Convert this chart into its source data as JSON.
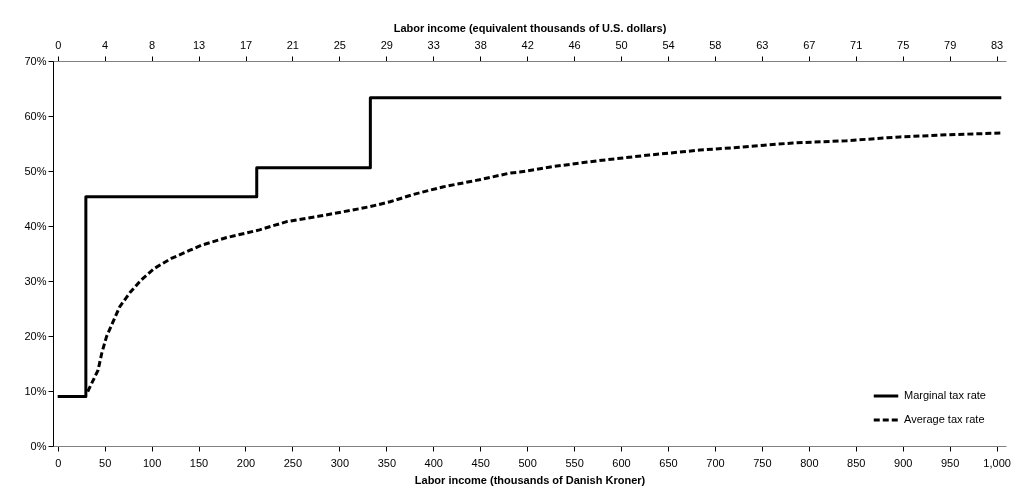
{
  "chart_data": {
    "type": "line",
    "xlabel": "Labor income (thousands of Danish Kroner)",
    "x2label": "Labor income (equivalent thousands of U.S. dollars)",
    "xlim": [
      -5,
      1010
    ],
    "xticks": [
      0,
      50,
      100,
      150,
      200,
      250,
      300,
      350,
      400,
      450,
      500,
      550,
      600,
      650,
      700,
      750,
      800,
      850,
      900,
      950,
      {
        "value": 1000,
        "label": "1,000"
      }
    ],
    "x2lim": [
      -0.4167,
      84.17
    ],
    "x2ticks": [
      0,
      {
        "value": 4.167,
        "label": "4"
      },
      {
        "value": 8.333,
        "label": "8"
      },
      {
        "value": 12.5,
        "label": "13"
      },
      {
        "value": 16.67,
        "label": "17"
      },
      {
        "value": 20.83,
        "label": "21"
      },
      25,
      {
        "value": 29.17,
        "label": "29"
      },
      {
        "value": 33.33,
        "label": "33"
      },
      {
        "value": 37.5,
        "label": "38"
      },
      {
        "value": 41.67,
        "label": "42"
      },
      {
        "value": 45.83,
        "label": "46"
      },
      50,
      {
        "value": 54.17,
        "label": "54"
      },
      {
        "value": 58.33,
        "label": "58"
      },
      {
        "value": 62.5,
        "label": "63"
      },
      {
        "value": 66.67,
        "label": "67"
      },
      {
        "value": 70.83,
        "label": "71"
      },
      75,
      {
        "value": 79.17,
        "label": "79"
      },
      {
        "value": 83.33,
        "label": "83"
      }
    ],
    "ylim": [
      0,
      70
    ],
    "yticks": [
      {
        "value": 0,
        "label": "0%"
      },
      {
        "value": 10,
        "label": "10%"
      },
      {
        "value": 20,
        "label": "20%"
      },
      {
        "value": 30,
        "label": "30%"
      },
      {
        "value": 40,
        "label": "40%"
      },
      {
        "value": 50,
        "label": "50%"
      },
      {
        "value": 60,
        "label": "60%"
      },
      {
        "value": 70,
        "label": "70%"
      }
    ],
    "grid": false,
    "legend": "bottom right",
    "series": [
      {
        "name": "Marginal tax rate",
        "type": "step",
        "color": "#000000",
        "line_style": "solid",
        "x": [
          0,
          30,
          212,
          333,
          1005
        ],
        "values": [
          9,
          45.3,
          50.6,
          63.3,
          63.3
        ]
      },
      {
        "name": "Average tax rate",
        "color": "#000000",
        "line_style": "dashed",
        "x": [
          32,
          43,
          47,
          52,
          59,
          66,
          77,
          89,
          103,
          121,
          141,
          153,
          180,
          215,
          244,
          279,
          314,
          332,
          354,
          378,
          410,
          449,
          481,
          492,
          527,
          577,
          630,
          684,
          733,
          783,
          840,
          897,
          950,
          1004
        ],
        "values": [
          9.9,
          13.8,
          16.9,
          19.9,
          22.6,
          25.3,
          27.9,
          30.2,
          32.3,
          34.1,
          35.6,
          36.5,
          37.9,
          39.3,
          40.8,
          41.8,
          42.9,
          43.5,
          44.4,
          45.7,
          47.1,
          48.4,
          49.6,
          49.8,
          50.8,
          51.9,
          52.9,
          53.8,
          54.4,
          55.1,
          55.5,
          56.2,
          56.6,
          56.9
        ]
      }
    ]
  }
}
